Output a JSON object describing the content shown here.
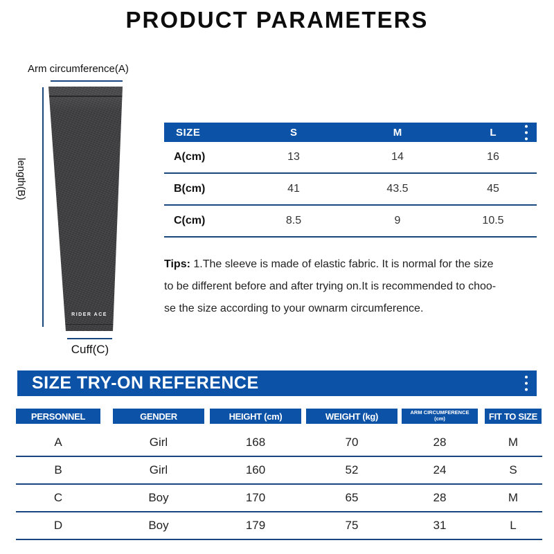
{
  "title": "PRODUCT PARAMETERS",
  "colors": {
    "accent_blue": "#0c53a8",
    "divider_navy": "#17477e",
    "sleeve_charcoal": "#39393b"
  },
  "diagram": {
    "arm_label": "Arm circumference(A)",
    "length_label": "length(B)",
    "cuff_label": "Cuff(C)",
    "logo": "RIDER ACE"
  },
  "size_table": {
    "header": {
      "size_label": "SIZE",
      "cols": [
        "S",
        "M",
        "L"
      ]
    },
    "rows": [
      {
        "label": "A(cm)",
        "values": [
          "13",
          "14",
          "16"
        ]
      },
      {
        "label": "B(cm)",
        "values": [
          "41",
          "43.5",
          "45"
        ]
      },
      {
        "label": "C(cm)",
        "values": [
          "8.5",
          "9",
          "10.5"
        ]
      }
    ]
  },
  "tips": {
    "label": "Tips:",
    "text": "1.The sleeve is made of elastic fabric. It is normal for the size\nto be different before and after trying on.It is recommended to choo-\nse the size according to your ownarm circumference."
  },
  "banner": {
    "title": "SIZE TRY-ON REFERENCE"
  },
  "reference_table": {
    "headers": [
      "PERSONNEL",
      "GENDER",
      "HEIGHT (cm)",
      "WEIGHT (kg)",
      "ARM CIRCUMFERENCE\n(cm)",
      "FIT TO SIZE"
    ],
    "rows": [
      [
        "A",
        "Girl",
        "168",
        "70",
        "28",
        "M"
      ],
      [
        "B",
        "Girl",
        "160",
        "52",
        "24",
        "S"
      ],
      [
        "C",
        "Boy",
        "170",
        "65",
        "28",
        "M"
      ],
      [
        "D",
        "Boy",
        "179",
        "75",
        "31",
        "L"
      ]
    ]
  }
}
